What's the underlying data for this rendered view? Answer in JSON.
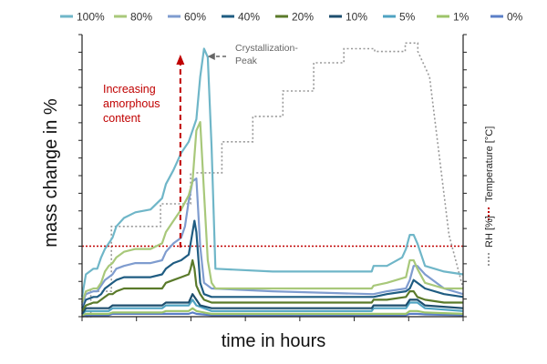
{
  "chart_data": {
    "type": "line",
    "title": "",
    "xlabel": "time in hours",
    "ylabel": "mass change in %",
    "x_range": [
      0,
      100
    ],
    "y_range": [
      0,
      100
    ],
    "x_tick_count": 7,
    "y_tick_count": 16,
    "grid": false,
    "legend_position": "top",
    "annotations": {
      "amorphous": [
        "Increasing",
        "amorphous",
        "content"
      ],
      "peak": [
        "Crystallization-",
        "Peak"
      ]
    },
    "right_axis": {
      "rh_label": "RH [%]",
      "temp_label": "Temperature [°C]",
      "rh_color": "#999999",
      "temp_color": "#c00000",
      "tick_count": 16
    },
    "temperature": {
      "name": "Temperature",
      "color": "#c00000",
      "value": 25
    },
    "rh": {
      "name": "RH",
      "color": "#999999",
      "x": [
        0,
        2.3,
        2.3,
        7.7,
        7.7,
        20.6,
        20.6,
        28.5,
        28.5,
        36.7,
        36.7,
        44.8,
        44.8,
        52.7,
        52.7,
        60.8,
        60.8,
        68.7,
        68.7,
        76.8,
        76.8,
        84.8,
        84.8,
        88.1,
        88.1,
        91.2,
        96.3,
        100
      ],
      "y": [
        0,
        0,
        9,
        9,
        32,
        32,
        40,
        40,
        51,
        51,
        62,
        62,
        71,
        71,
        80,
        80,
        90,
        90,
        95,
        95,
        94,
        94,
        97,
        97,
        94,
        85,
        29,
        10
      ]
    },
    "series": [
      {
        "name": "100%",
        "color": "#6fb6c8",
        "x": [
          0,
          1,
          3,
          4,
          5,
          6,
          7,
          8,
          9,
          11,
          14,
          18,
          21,
          22,
          24,
          26,
          28,
          30,
          31,
          32,
          33,
          34,
          35,
          50,
          76,
          76.5,
          80,
          84,
          85,
          86,
          87,
          88,
          90,
          95,
          100
        ],
        "y": [
          7,
          15,
          17,
          17,
          21,
          24,
          26,
          28,
          32,
          35,
          37,
          38,
          42,
          47,
          52,
          58,
          62,
          70,
          85,
          95,
          92,
          60,
          17,
          16,
          16,
          18,
          18,
          21,
          24,
          29,
          29,
          26,
          18,
          16,
          15
        ]
      },
      {
        "name": "80%",
        "color": "#a8c87a",
        "x": [
          0,
          1,
          3,
          4,
          5,
          6,
          7,
          8,
          9,
          11,
          14,
          18,
          21,
          22,
          24,
          26,
          28,
          29,
          30,
          31,
          32,
          33,
          34,
          35,
          50,
          76,
          76.5,
          80,
          85,
          86,
          87,
          88,
          90,
          95,
          100
        ],
        "y": [
          5,
          9,
          10,
          10,
          12,
          16,
          18,
          19,
          21,
          23,
          24,
          24,
          26,
          30,
          34,
          38,
          43,
          48,
          66,
          69,
          44,
          20,
          12,
          10,
          10,
          10,
          11,
          12,
          14,
          20,
          20,
          17,
          12,
          10,
          10
        ]
      },
      {
        "name": "60%",
        "color": "#7f9ccf",
        "x": [
          0,
          1,
          3,
          4,
          5,
          6,
          7,
          8,
          9,
          11,
          14,
          18,
          21,
          22,
          24,
          26,
          27,
          28,
          29,
          30,
          31,
          32,
          34,
          50,
          76,
          76.5,
          80,
          85,
          86,
          87,
          88,
          90,
          95,
          100
        ],
        "y": [
          4,
          8,
          9,
          9,
          11,
          13,
          14,
          15,
          17,
          18,
          19,
          19,
          20,
          23,
          26,
          28,
          32,
          41,
          48,
          49,
          25,
          12,
          10,
          9,
          8,
          8,
          9,
          10,
          13,
          18,
          18,
          15,
          10,
          8
        ]
      },
      {
        "name": "40%",
        "color": "#1f5c82",
        "x": [
          0,
          1,
          3,
          4,
          5,
          6,
          7,
          8,
          9,
          11,
          14,
          18,
          21,
          22,
          24,
          26,
          28,
          29,
          29.5,
          30,
          31,
          32,
          34,
          50,
          76,
          76.5,
          80,
          85,
          86,
          87,
          88,
          90,
          95,
          100
        ],
        "y": [
          3,
          6,
          7,
          7,
          8,
          10,
          11,
          12,
          13,
          14,
          14,
          14,
          15,
          17,
          19,
          20,
          22,
          30,
          34,
          30,
          12,
          8,
          7,
          7,
          7,
          7,
          8,
          9,
          10,
          13,
          12,
          10,
          8,
          7
        ]
      },
      {
        "name": "20%",
        "color": "#5a7a2a",
        "x": [
          0,
          1,
          3,
          4,
          5,
          6,
          7,
          8,
          9,
          11,
          14,
          18,
          21,
          22,
          24,
          26,
          28,
          28.5,
          29,
          29.5,
          30,
          31,
          32,
          34,
          50,
          76,
          76.5,
          80,
          85,
          86,
          87,
          88,
          90,
          95,
          100
        ],
        "y": [
          2,
          4,
          5,
          5,
          6,
          7,
          8,
          8,
          9,
          10,
          10,
          10,
          10,
          12,
          13,
          14,
          15,
          17,
          20,
          17,
          11,
          8,
          6,
          5,
          5,
          5,
          6,
          6,
          7,
          9,
          9,
          7,
          6,
          5,
          5
        ]
      },
      {
        "name": "10%",
        "color": "#1d4e6e",
        "x": [
          0,
          1,
          3,
          7,
          8,
          14,
          21,
          22,
          28,
          29,
          30,
          31,
          34,
          50,
          76,
          76.5,
          85,
          86,
          88,
          90,
          100
        ],
        "y": [
          1,
          3,
          3,
          3,
          4,
          4,
          4,
          5,
          5,
          8,
          6,
          4,
          3,
          3,
          3,
          4,
          4,
          6,
          6,
          4,
          3
        ]
      },
      {
        "name": "5%",
        "color": "#4fa3c2",
        "x": [
          0,
          1,
          7,
          8,
          21,
          22,
          28,
          29,
          30,
          34,
          76,
          76.5,
          85,
          86,
          88,
          90,
          100
        ],
        "y": [
          1,
          2,
          2,
          3,
          3,
          4,
          4,
          6,
          4,
          2,
          2,
          3,
          3,
          5,
          5,
          3,
          2
        ]
      },
      {
        "name": "1%",
        "color": "#9dc46a",
        "x": [
          0,
          1,
          7,
          8,
          21,
          22,
          28,
          29,
          30,
          34,
          76,
          85,
          86,
          88,
          90,
          100
        ],
        "y": [
          0.5,
          1,
          1,
          1.5,
          1.5,
          2,
          2,
          3,
          2,
          1,
          1,
          1,
          2,
          2,
          1.5,
          1
        ]
      },
      {
        "name": "0%",
        "color": "#5b7fc7",
        "x": [
          0,
          1,
          7,
          8,
          21,
          22,
          28,
          29,
          30,
          34,
          76,
          85,
          86,
          88,
          90,
          100
        ],
        "y": [
          0.3,
          0.5,
          0.5,
          1,
          1,
          1,
          1,
          1.5,
          1,
          0.5,
          0.5,
          0.5,
          1,
          1,
          0.8,
          0.5
        ]
      }
    ]
  }
}
